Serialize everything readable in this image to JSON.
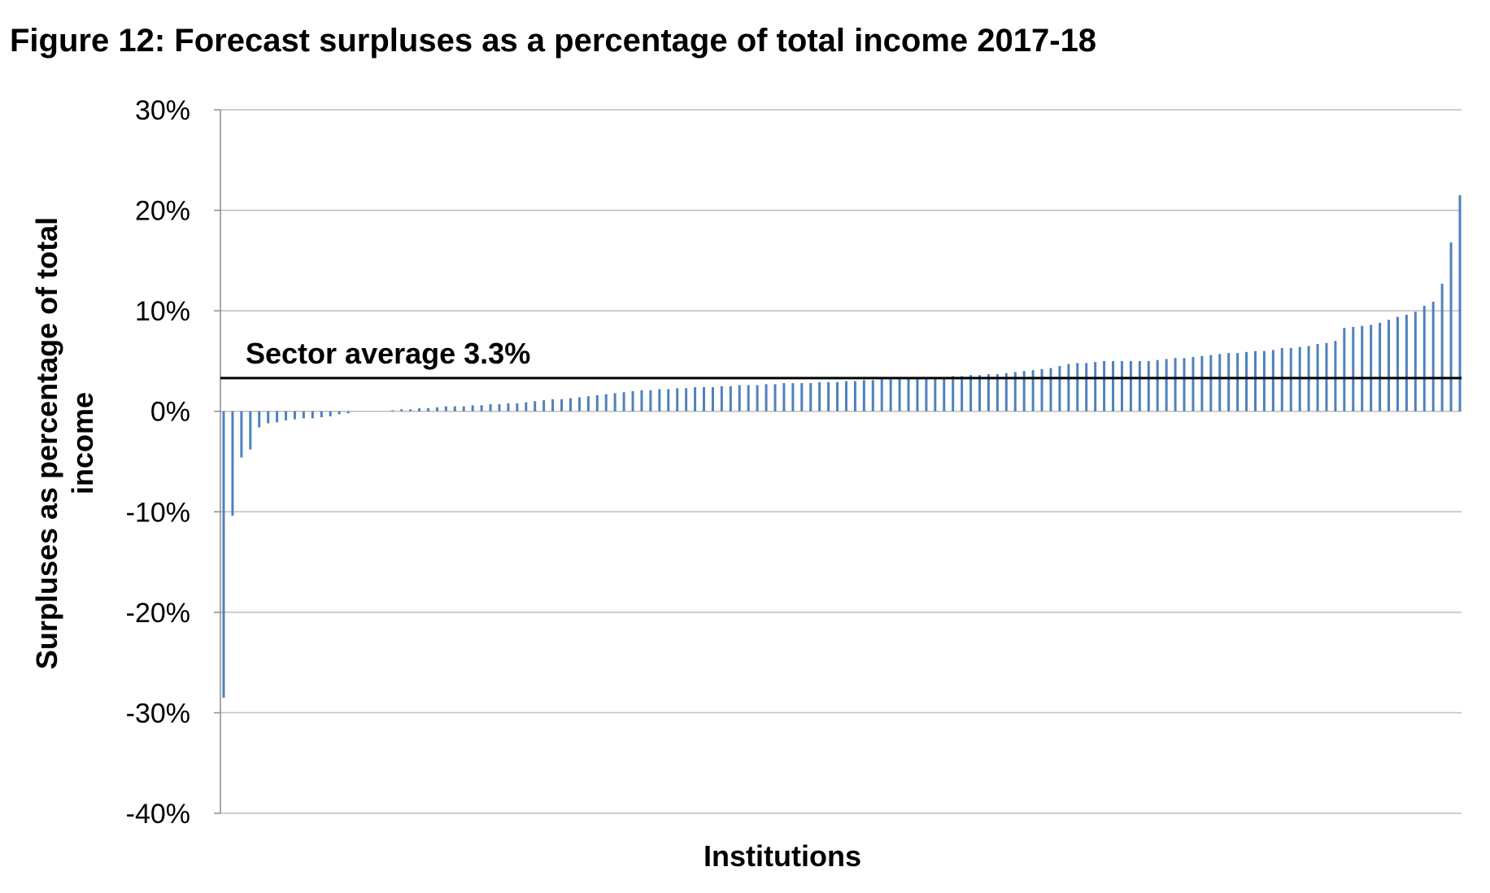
{
  "figure": {
    "title": "Figure 12: Forecast surpluses as a percentage of total income 2017-18"
  },
  "chart_data": {
    "type": "bar",
    "title": "Figure 12: Forecast surpluses as a percentage of total income 2017-18",
    "xlabel": "Institutions",
    "ylabel_lines": [
      "Surpluses as percentage of total",
      "income"
    ],
    "ylim": [
      -40,
      30
    ],
    "yticks": [
      30,
      20,
      10,
      0,
      -10,
      -20,
      -30,
      -40
    ],
    "ytick_labels": [
      "30%",
      "20%",
      "10%",
      "0%",
      "-10%",
      "-20%",
      "-30%",
      "-40%"
    ],
    "grid": true,
    "bar_color": "#4f81bd",
    "values": [
      -28.5,
      -10.4,
      -4.6,
      -3.8,
      -1.6,
      -1.2,
      -1.1,
      -0.9,
      -0.8,
      -0.7,
      -0.7,
      -0.6,
      -0.5,
      -0.3,
      -0.2,
      0,
      0,
      0,
      0,
      0.1,
      0.2,
      0.2,
      0.3,
      0.3,
      0.4,
      0.5,
      0.5,
      0.5,
      0.6,
      0.6,
      0.7,
      0.7,
      0.8,
      0.8,
      0.9,
      1.0,
      1.1,
      1.2,
      1.2,
      1.3,
      1.4,
      1.5,
      1.6,
      1.7,
      1.8,
      1.9,
      2.0,
      2.1,
      2.1,
      2.2,
      2.2,
      2.3,
      2.3,
      2.4,
      2.4,
      2.4,
      2.5,
      2.5,
      2.6,
      2.6,
      2.6,
      2.7,
      2.7,
      2.8,
      2.8,
      2.8,
      2.8,
      2.9,
      2.9,
      2.9,
      3.0,
      3.0,
      3.1,
      3.1,
      3.2,
      3.2,
      3.2,
      3.3,
      3.3,
      3.3,
      3.4,
      3.4,
      3.5,
      3.5,
      3.6,
      3.6,
      3.7,
      3.7,
      3.8,
      3.9,
      4.0,
      4.1,
      4.2,
      4.3,
      4.5,
      4.7,
      4.8,
      4.8,
      4.9,
      5.0,
      5.0,
      5.0,
      5.0,
      5.0,
      5.0,
      5.1,
      5.2,
      5.3,
      5.3,
      5.4,
      5.5,
      5.6,
      5.7,
      5.8,
      5.8,
      5.9,
      6.0,
      6.0,
      6.1,
      6.3,
      6.3,
      6.4,
      6.5,
      6.7,
      6.8,
      7.0,
      8.3,
      8.4,
      8.5,
      8.6,
      8.8,
      9.1,
      9.4,
      9.6,
      9.9,
      10.5,
      10.9,
      12.7,
      16.8,
      21.5
    ],
    "sector_average": {
      "label": "Sector average  3.3%",
      "value": 3.3
    }
  }
}
